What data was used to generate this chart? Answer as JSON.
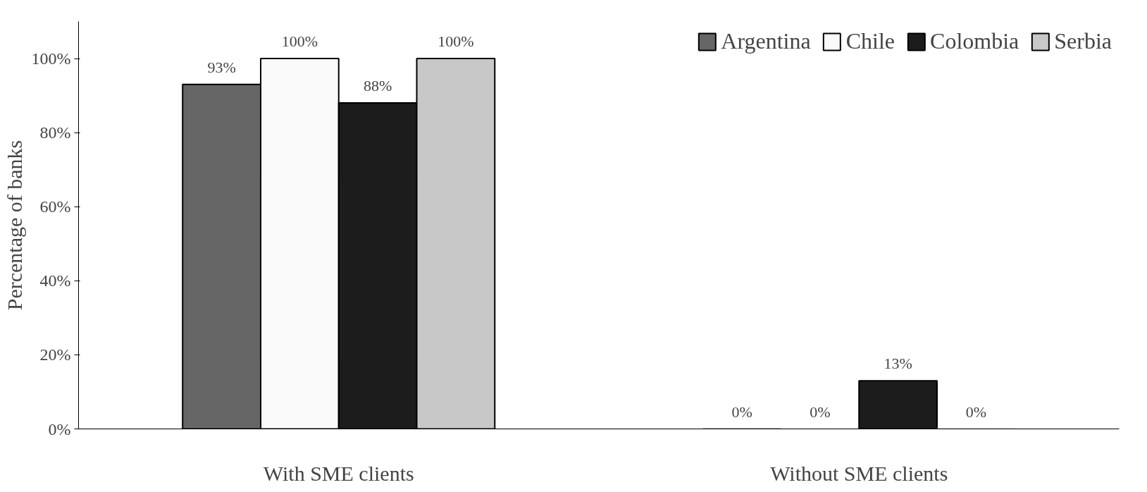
{
  "chart_data": {
    "type": "bar",
    "ylabel": "Percentage of banks",
    "categories": [
      "With SME clients",
      "Without SME clients"
    ],
    "series": [
      {
        "name": "Argentina",
        "color": "#666666",
        "values": [
          93,
          0
        ],
        "value_labels": [
          "93%",
          "0%"
        ]
      },
      {
        "name": "Chile",
        "color": "#fafafa",
        "values": [
          100,
          0
        ],
        "value_labels": [
          "100%",
          "0%"
        ]
      },
      {
        "name": "Colombia",
        "color": "#1c1c1c",
        "values": [
          88,
          13
        ],
        "value_labels": [
          "88%",
          "13%"
        ]
      },
      {
        "name": "Serbia",
        "color": "#c8c8c8",
        "values": [
          100,
          0
        ],
        "value_labels": [
          "100%",
          "0%"
        ]
      }
    ],
    "ylim": [
      0,
      110
    ],
    "yticks": [
      {
        "value": 0,
        "label": "0%"
      },
      {
        "value": 20,
        "label": "20%"
      },
      {
        "value": 40,
        "label": "40%"
      },
      {
        "value": 60,
        "label": "60%"
      },
      {
        "value": 80,
        "label": "80%"
      },
      {
        "value": 100,
        "label": "100%"
      }
    ],
    "grid": false,
    "legend": "top right"
  }
}
